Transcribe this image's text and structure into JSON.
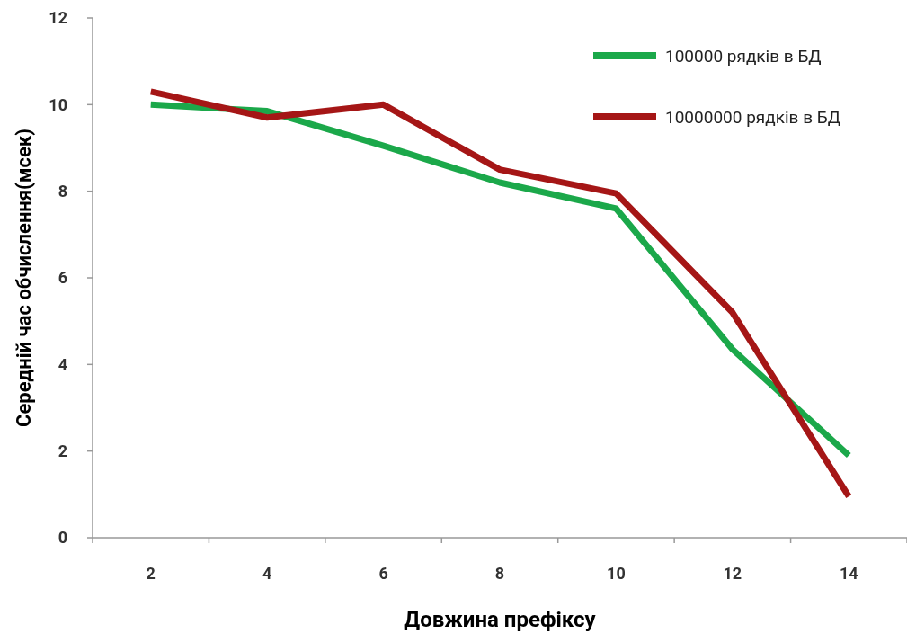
{
  "chart_data": {
    "type": "line",
    "xlabel": "Довжина префіксу",
    "ylabel": "Середній час обчислення(мсек)",
    "categories": [
      "2",
      "4",
      "6",
      "8",
      "10",
      "12",
      "14"
    ],
    "series": [
      {
        "name": "100000 рядків в БД",
        "color": "#1ba84a",
        "values": [
          10.0,
          9.85,
          9.05,
          8.2,
          7.6,
          4.35,
          1.9
        ]
      },
      {
        "name": "10000000 рядків в БД",
        "color": "#a51616",
        "values": [
          10.3,
          9.7,
          10.0,
          8.5,
          7.95,
          5.2,
          0.95
        ]
      }
    ],
    "ylim": [
      0,
      12
    ],
    "yticks": [
      0,
      2,
      4,
      6,
      8,
      10,
      12
    ],
    "grid": false,
    "legend": "top right",
    "marker": "none",
    "line_style": "solid"
  }
}
